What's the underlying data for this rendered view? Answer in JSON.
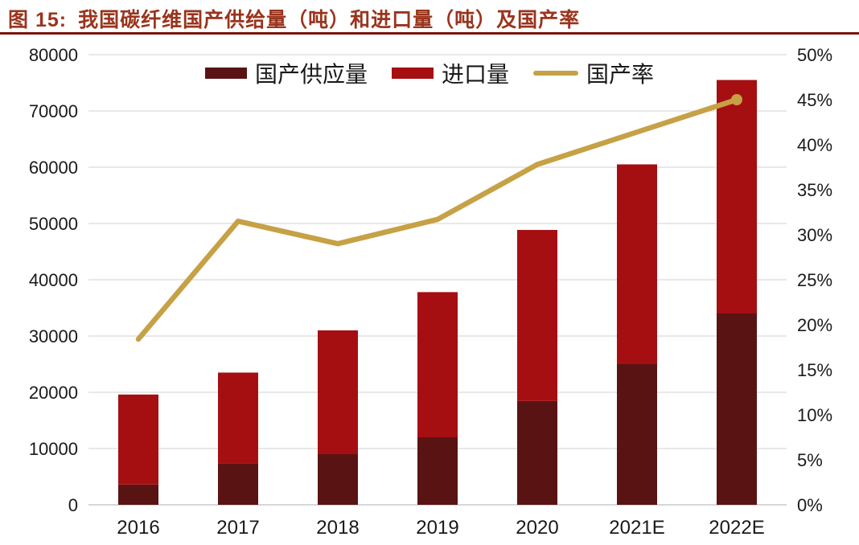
{
  "title": {
    "prefix": "图 15:",
    "text": "我国碳纤维国产供给量（吨）和进口量（吨）及国产率"
  },
  "colors": {
    "title_text": "#9A341D",
    "title_rule": "#7B130D",
    "domestic_bar": "#5A1313",
    "import_bar": "#A50F12",
    "rate_line": "#C6A145",
    "grid_line": "#DBDBDB",
    "baseline": "#BFBFBF",
    "axis_text": "#1A1A1A"
  },
  "legend": {
    "items": [
      {
        "label": "国产供应量",
        "swatch": "bar",
        "color": "#5A1313"
      },
      {
        "label": "进口量",
        "swatch": "bar",
        "color": "#A50F12"
      },
      {
        "label": "国产率",
        "swatch": "line",
        "color": "#C6A145"
      }
    ]
  },
  "chart_data": {
    "type": "combo: stacked bar + line, dual y-axes",
    "title": "我国碳纤维国产供给量（吨）和进口量（吨）及国产率",
    "categories": [
      "2016",
      "2017",
      "2018",
      "2019",
      "2020",
      "2021E",
      "2022E"
    ],
    "series": [
      {
        "name": "国产供应量",
        "type": "bar",
        "stacked": true,
        "axis": "left",
        "color": "#5A1313",
        "values": [
          3600,
          7400,
          9000,
          12000,
          18450,
          25000,
          34000
        ]
      },
      {
        "name": "进口量",
        "type": "bar",
        "stacked": true,
        "axis": "left",
        "color": "#A50F12",
        "values": [
          16000,
          16100,
          22000,
          25800,
          30400,
          35500,
          41500
        ]
      },
      {
        "name": "国产率",
        "type": "line",
        "axis": "right",
        "color": "#C6A145",
        "unit": "%",
        "values": [
          18.4,
          31.5,
          29.0,
          31.7,
          37.8,
          41.4,
          45.0
        ],
        "end_marker": true
      }
    ],
    "stacked_totals": [
      19600,
      23500,
      31000,
      37800,
      48850,
      60500,
      75500
    ],
    "left_axis": {
      "min": 0,
      "max": 80000,
      "step": 10000,
      "tick_labels": [
        "0",
        "10000",
        "20000",
        "30000",
        "40000",
        "50000",
        "60000",
        "70000",
        "80000"
      ]
    },
    "right_axis": {
      "min": 0,
      "max": 50,
      "step": 5,
      "unit": "%",
      "tick_labels": [
        "0%",
        "5%",
        "10%",
        "15%",
        "20%",
        "25%",
        "30%",
        "35%",
        "40%",
        "45%",
        "50%"
      ]
    },
    "legend_position": "top-center",
    "grid": "horizontal only"
  }
}
